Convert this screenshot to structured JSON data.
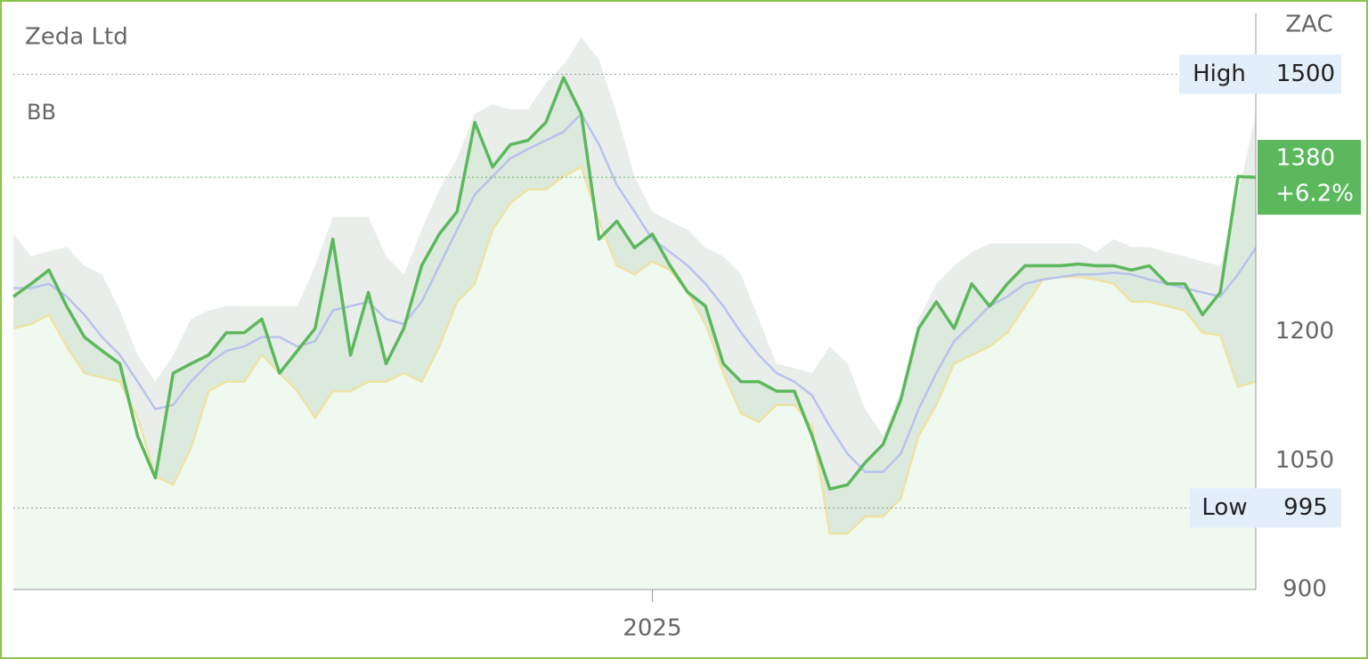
{
  "chart_data": {
    "type": "line",
    "title": "Zeda Ltd",
    "indicator": "BB",
    "currency": "ZAC",
    "categories": [
      null,
      null,
      null,
      null,
      null,
      null,
      null,
      null,
      null,
      null,
      null,
      null,
      null,
      null,
      null,
      null,
      null,
      null,
      null,
      null,
      null,
      null,
      null,
      null,
      null,
      null,
      null,
      null,
      null,
      null,
      null,
      null,
      null,
      null,
      null,
      null,
      "2025",
      null,
      null,
      null,
      null,
      null,
      null,
      null,
      null,
      null,
      null,
      null,
      null,
      null,
      null,
      null,
      null,
      null,
      null,
      null,
      null,
      null,
      null,
      null,
      null,
      null,
      null,
      null,
      null,
      null,
      null,
      null,
      null,
      null,
      null
    ],
    "price": {
      "color": "#5cb85c",
      "values": [
        1241,
        1256,
        1272,
        1230,
        1194,
        1178,
        1163,
        1079,
        1030,
        1152,
        1163,
        1173,
        1199,
        1199,
        1215,
        1152,
        1178,
        1204,
        1308,
        1173,
        1246,
        1163,
        1204,
        1277,
        1314,
        1340,
        1444,
        1392,
        1418,
        1423,
        1444,
        1496,
        1454,
        1308,
        1329,
        1298,
        1314,
        1277,
        1246,
        1230,
        1163,
        1142,
        1142,
        1131,
        1131,
        1079,
        1017,
        1022,
        1048,
        1069,
        1121,
        1204,
        1235,
        1204,
        1256,
        1230,
        1256,
        1277,
        1277,
        1277,
        1279,
        1277,
        1277,
        1272,
        1277,
        1256,
        1256,
        1220,
        1246,
        1381,
        1380
      ]
    },
    "bb_upper": {
      "color": "#e6ebe8",
      "values": [
        1314,
        1288,
        1294,
        1299,
        1277,
        1267,
        1225,
        1173,
        1142,
        1173,
        1215,
        1225,
        1230,
        1230,
        1230,
        1230,
        1230,
        1277,
        1334,
        1334,
        1334,
        1288,
        1267,
        1319,
        1366,
        1402,
        1454,
        1465,
        1459,
        1459,
        1490,
        1511,
        1543,
        1517,
        1454,
        1381,
        1340,
        1329,
        1319,
        1298,
        1288,
        1267,
        1215,
        1163,
        1158,
        1152,
        1183,
        1163,
        1110,
        1079,
        1131,
        1215,
        1256,
        1277,
        1293,
        1303,
        1303,
        1303,
        1303,
        1303,
        1303,
        1293,
        1308,
        1299,
        1299,
        1293,
        1288,
        1282,
        1277,
        1360,
        1454
      ]
    },
    "bb_middle": {
      "color": "#b7c3ec",
      "values": [
        1251,
        1251,
        1256,
        1241,
        1220,
        1194,
        1173,
        1142,
        1110,
        1115,
        1142,
        1163,
        1178,
        1183,
        1194,
        1194,
        1183,
        1189,
        1225,
        1230,
        1235,
        1215,
        1209,
        1235,
        1277,
        1319,
        1360,
        1381,
        1402,
        1413,
        1423,
        1433,
        1454,
        1418,
        1371,
        1340,
        1308,
        1293,
        1277,
        1256,
        1230,
        1199,
        1173,
        1152,
        1142,
        1126,
        1090,
        1058,
        1037,
        1037,
        1058,
        1110,
        1152,
        1189,
        1209,
        1230,
        1241,
        1256,
        1261,
        1264,
        1267,
        1267,
        1269,
        1267,
        1261,
        1256,
        1251,
        1246,
        1241,
        1267,
        1298
      ]
    },
    "bb_lower": {
      "color": "#ede3a3",
      "values": [
        1204,
        1209,
        1220,
        1183,
        1152,
        1147,
        1142,
        1100,
        1032,
        1022,
        1064,
        1131,
        1142,
        1142,
        1173,
        1152,
        1131,
        1100,
        1131,
        1131,
        1142,
        1142,
        1152,
        1142,
        1183,
        1235,
        1256,
        1319,
        1350,
        1366,
        1366,
        1381,
        1392,
        1329,
        1277,
        1267,
        1282,
        1272,
        1246,
        1209,
        1152,
        1105,
        1095,
        1115,
        1115,
        1090,
        965,
        965,
        985,
        985,
        1006,
        1079,
        1115,
        1163,
        1173,
        1183,
        1199,
        1230,
        1261,
        1264,
        1264,
        1261,
        1256,
        1235,
        1235,
        1230,
        1225,
        1199,
        1196,
        1136,
        1142
      ]
    },
    "high": {
      "label": "High",
      "value": 1500
    },
    "low": {
      "label": "Low",
      "value": 995
    },
    "last": {
      "value": 1380,
      "change": "+6.2%"
    },
    "ylim": [
      900,
      1574
    ],
    "yticks": [
      900,
      1050,
      1200
    ]
  }
}
